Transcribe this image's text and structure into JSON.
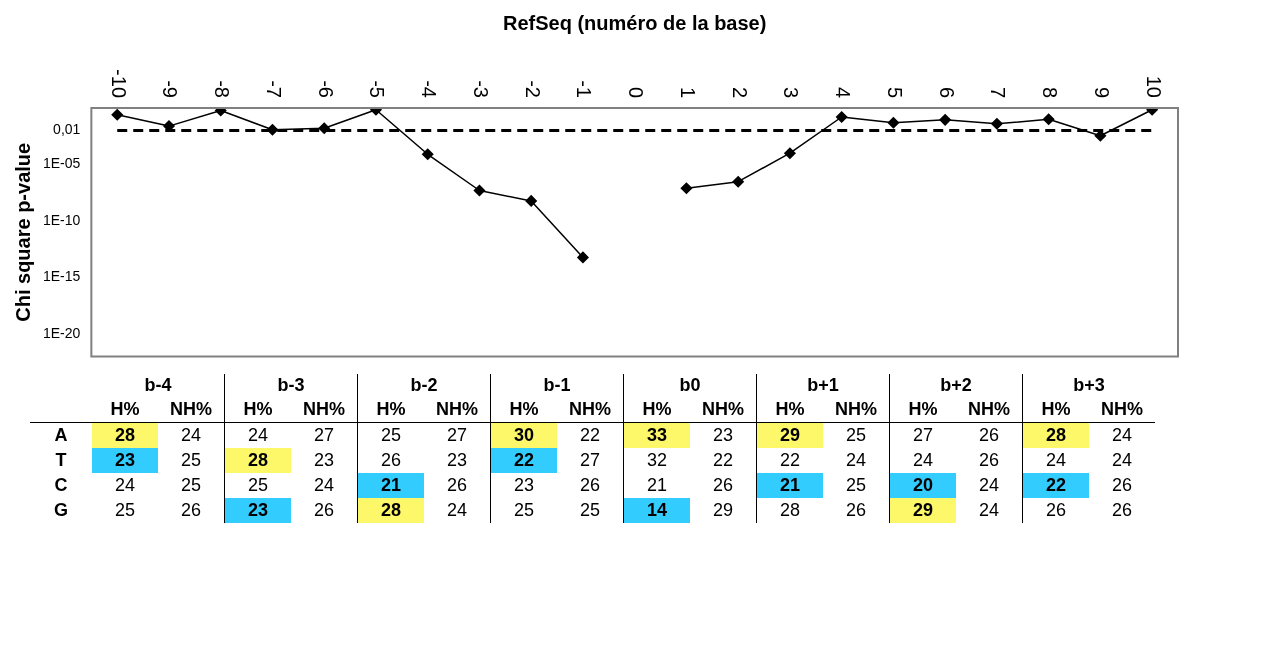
{
  "chart_data": [
    {
      "type": "line",
      "xlabel": "RefSeq (numéro de la base)",
      "ylabel": "Chi square p-value",
      "categories": [
        "-10",
        "-9",
        "-8",
        "-7",
        "-6",
        "-5",
        "-4",
        "-3",
        "-2",
        "-1",
        "0",
        "1",
        "2",
        "3",
        "4",
        "5",
        "6",
        "7",
        "8",
        "9",
        "10"
      ],
      "values": [
        0.25,
        0.025,
        0.6,
        0.012,
        0.016,
        0.7,
        8e-05,
        5e-08,
        6e-09,
        6e-14,
        null,
        8e-08,
        3e-07,
        0.0001,
        0.16,
        0.05,
        0.09,
        0.04,
        0.1,
        0.0035,
        0.7
      ],
      "color": "#000000",
      "marker": "diamond",
      "line_style": "solid",
      "log": "y",
      "ylim": [
        1e-22,
        1
      ],
      "yticks": [
        {
          "value": 0.01,
          "label": "0,01"
        },
        {
          "value": 1e-05,
          "label": "1E-05"
        },
        {
          "value": 1e-10,
          "label": "1E-10"
        },
        {
          "value": 1e-15,
          "label": "1E-15"
        },
        {
          "value": 1e-20,
          "label": "1E-20"
        }
      ],
      "ref_lines": [
        {
          "axis": "y",
          "value": 0.01,
          "line_style": "dashed",
          "color": "#000000"
        }
      ]
    },
    {
      "type": "heatmap",
      "data_labels": true,
      "annotations": [
        "b-4",
        "b-3",
        "b-2",
        "b-1",
        "b0",
        "b+1",
        "b+2",
        "b+3"
      ],
      "categories": [
        "H%",
        "NH%",
        "H%",
        "NH%",
        "H%",
        "NH%",
        "H%",
        "NH%",
        "H%",
        "NH%",
        "H%",
        "NH%",
        "H%",
        "NH%",
        "H%",
        "NH%"
      ],
      "y_categories": [
        "A",
        "T",
        "C",
        "G"
      ],
      "cells": [
        [
          28,
          24,
          24,
          27,
          25,
          27,
          30,
          22,
          33,
          23,
          29,
          25,
          27,
          26,
          28,
          24
        ],
        [
          23,
          25,
          28,
          23,
          26,
          23,
          22,
          27,
          32,
          22,
          22,
          24,
          24,
          26,
          24,
          24
        ],
        [
          24,
          25,
          25,
          24,
          21,
          26,
          23,
          26,
          21,
          26,
          21,
          25,
          20,
          24,
          22,
          26
        ],
        [
          25,
          26,
          23,
          26,
          28,
          24,
          25,
          25,
          14,
          29,
          28,
          26,
          29,
          24,
          26,
          26
        ]
      ],
      "colors": [
        [
          "#fdf76a",
          null,
          null,
          null,
          null,
          null,
          "#fdf76a",
          null,
          "#fdf76a",
          null,
          "#fdf76a",
          null,
          null,
          null,
          "#fdf76a",
          null
        ],
        [
          "#33ccff",
          null,
          "#fdf76a",
          null,
          null,
          null,
          "#33ccff",
          null,
          null,
          null,
          null,
          null,
          null,
          null,
          null,
          null
        ],
        [
          null,
          null,
          null,
          null,
          "#33ccff",
          null,
          null,
          null,
          null,
          null,
          "#33ccff",
          null,
          "#33ccff",
          null,
          "#33ccff",
          null
        ],
        [
          null,
          null,
          "#33ccff",
          null,
          "#fdf76a",
          null,
          null,
          null,
          "#33ccff",
          null,
          null,
          null,
          "#fdf76a",
          null,
          null,
          null
        ]
      ]
    }
  ]
}
